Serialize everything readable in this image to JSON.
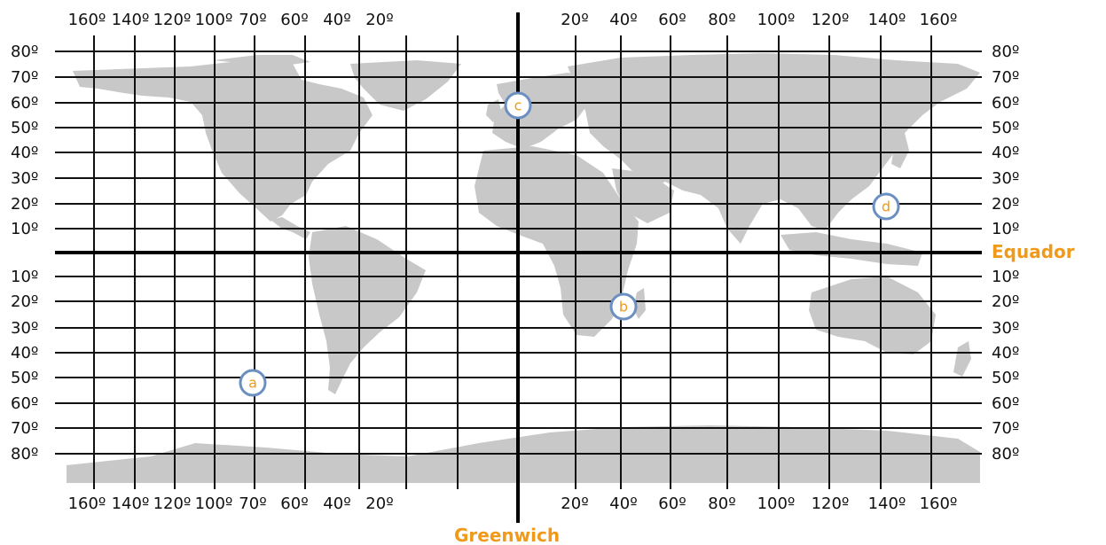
{
  "map": {
    "equator_label": "Equador",
    "greenwich_label": "Greenwich",
    "top_longitude_labels": [
      "160º",
      "140º",
      "120º",
      "100º",
      "70º",
      "60º",
      "40º",
      "20º",
      "20º",
      "40º",
      "60º",
      "80º",
      "100º",
      "120º",
      "140º",
      "160º"
    ],
    "bottom_longitude_labels": [
      "160º",
      "140º",
      "120º",
      "100º",
      "70º",
      "60º",
      "40º",
      "20º",
      "20º",
      "40º",
      "60º",
      "80º",
      "100º",
      "120º",
      "140º",
      "160º"
    ],
    "left_latitude_labels": [
      "80º",
      "70º",
      "60º",
      "50º",
      "40º",
      "30º",
      "20º",
      "10º",
      "10º",
      "20º",
      "30º",
      "40º",
      "50º",
      "60º",
      "70º",
      "80º"
    ],
    "right_latitude_labels": [
      "80º",
      "70º",
      "60º",
      "50º",
      "40º",
      "30º",
      "20º",
      "10º",
      "10º",
      "20º",
      "30º",
      "40º",
      "50º",
      "60º",
      "70º",
      "80º"
    ],
    "markers": [
      {
        "letter": "a"
      },
      {
        "letter": "b"
      },
      {
        "letter": "c"
      },
      {
        "letter": "d"
      }
    ],
    "colors": {
      "land": "#c8c8c8",
      "grid": "#111111",
      "axis": "#000000",
      "accent_orange": "#f09a1a",
      "marker_ring": "#6a8fc0"
    }
  }
}
